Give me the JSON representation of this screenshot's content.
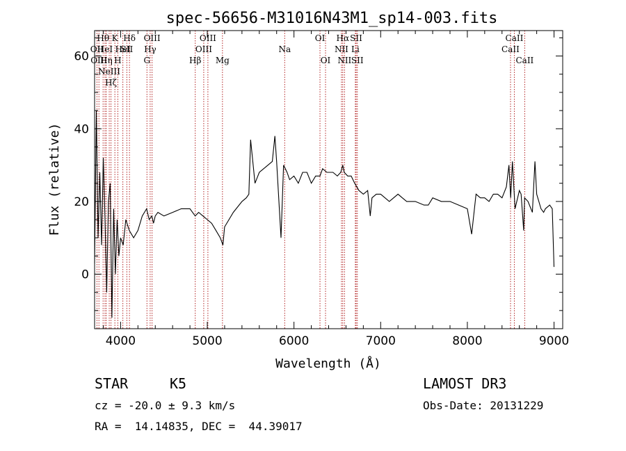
{
  "chart_data": {
    "type": "line",
    "title": "spec-56656-M31016N43M1_sp14-003.fits",
    "xlabel": "Wavelength (Å)",
    "ylabel": "Flux (relative)",
    "xlim": [
      3700,
      9100
    ],
    "ylim": [
      -15,
      67
    ],
    "xticks": [
      4000,
      5000,
      6000,
      7000,
      8000,
      9000
    ],
    "yticks": [
      0,
      20,
      40,
      60
    ],
    "series": [
      {
        "name": "flux",
        "x": [
          3700,
          3720,
          3740,
          3760,
          3780,
          3800,
          3820,
          3840,
          3860,
          3880,
          3900,
          3920,
          3940,
          3960,
          3980,
          4000,
          4030,
          4060,
          4100,
          4150,
          4200,
          4250,
          4300,
          4330,
          4360,
          4380,
          4400,
          4430,
          4500,
          4600,
          4700,
          4800,
          4860,
          4900,
          4950,
          5000,
          5050,
          5100,
          5150,
          5180,
          5200,
          5250,
          5300,
          5400,
          5450,
          5480,
          5500,
          5550,
          5600,
          5650,
          5700,
          5750,
          5780,
          5800,
          5850,
          5880,
          5900,
          5920,
          5950,
          6000,
          6050,
          6100,
          6150,
          6200,
          6250,
          6300,
          6330,
          6380,
          6450,
          6500,
          6540,
          6563,
          6580,
          6620,
          6660,
          6700,
          6750,
          6800,
          6850,
          6880,
          6900,
          6950,
          7000,
          7100,
          7200,
          7250,
          7300,
          7400,
          7500,
          7550,
          7600,
          7700,
          7800,
          7900,
          8000,
          8050,
          8100,
          8150,
          8200,
          8250,
          8300,
          8350,
          8400,
          8450,
          8480,
          8500,
          8520,
          8550,
          8600,
          8620,
          8650,
          8660,
          8700,
          8750,
          8780,
          8800,
          8850,
          8880,
          8900,
          8950,
          8980,
          9000
        ],
        "y": [
          3,
          45,
          10,
          28,
          8,
          32,
          15,
          -5,
          20,
          25,
          -12,
          18,
          0,
          15,
          5,
          10,
          8,
          15,
          12,
          10,
          12,
          16,
          18,
          15,
          16,
          14,
          16,
          17,
          16,
          17,
          18,
          18,
          16,
          17,
          16,
          15,
          14,
          12,
          10,
          8,
          13,
          15,
          17,
          20,
          21,
          22,
          37,
          25,
          28,
          29,
          30,
          31,
          38,
          31,
          10,
          30,
          29,
          28,
          26,
          27,
          25,
          28,
          28,
          25,
          27,
          27,
          29,
          28,
          28,
          27,
          28,
          30,
          28,
          27,
          27,
          25,
          23,
          22,
          23,
          16,
          21,
          22,
          22,
          20,
          22,
          21,
          20,
          20,
          19,
          19,
          21,
          20,
          20,
          19,
          18,
          11,
          22,
          21,
          21,
          20,
          22,
          22,
          21,
          24,
          30,
          21,
          31,
          18,
          23,
          22,
          12,
          21,
          20,
          17,
          31,
          22,
          18,
          17,
          18,
          19,
          18,
          2
        ]
      }
    ],
    "lines": [
      {
        "wl": 3727,
        "label": "OII",
        "row": 1
      },
      {
        "wl": 3750,
        "label": "OIII",
        "row": 2
      },
      {
        "wl": 3798,
        "label": "Hθ",
        "row": 0
      },
      {
        "wl": 3820,
        "label": "HeI",
        "row": 1
      },
      {
        "wl": 3835,
        "label": "Hη",
        "row": 2
      },
      {
        "wl": 3869,
        "label": "NeIII",
        "row": 3
      },
      {
        "wl": 3889,
        "label": "Hζ",
        "row": 4
      },
      {
        "wl": 3934,
        "label": "K",
        "row": 0
      },
      {
        "wl": 3968,
        "label": "H",
        "row": 2
      },
      {
        "wl": 4026,
        "label": "HeI",
        "row": 1
      },
      {
        "wl": 4072,
        "label": "SII",
        "row": 1
      },
      {
        "wl": 4102,
        "label": "Hδ",
        "row": 0
      },
      {
        "wl": 4304,
        "label": "G",
        "row": 2
      },
      {
        "wl": 4341,
        "label": "Hγ",
        "row": 1
      },
      {
        "wl": 4363,
        "label": "OIII",
        "row": 0
      },
      {
        "wl": 4861,
        "label": "Hβ",
        "row": 2
      },
      {
        "wl": 4959,
        "label": "OIII",
        "row": 1
      },
      {
        "wl": 5007,
        "label": "OIII",
        "row": 0
      },
      {
        "wl": 5175,
        "label": "Mg",
        "row": 2
      },
      {
        "wl": 5893,
        "label": "Na",
        "row": 1
      },
      {
        "wl": 6300,
        "label": "OI",
        "row": 0
      },
      {
        "wl": 6364,
        "label": "OI",
        "row": 2
      },
      {
        "wl": 6548,
        "label": "NII",
        "row": 1
      },
      {
        "wl": 6563,
        "label": "Hα",
        "row": 0
      },
      {
        "wl": 6583,
        "label": "NII",
        "row": 2
      },
      {
        "wl": 6708,
        "label": "Li",
        "row": 1
      },
      {
        "wl": 6717,
        "label": "SII",
        "row": 0
      },
      {
        "wl": 6731,
        "label": "SII",
        "row": 2
      },
      {
        "wl": 8498,
        "label": "CaII",
        "row": 1
      },
      {
        "wl": 8542,
        "label": "CaII",
        "row": 0
      },
      {
        "wl": 8662,
        "label": "CaII",
        "row": 2
      }
    ],
    "line_color": "#b22222"
  },
  "info": {
    "class": "STAR",
    "subclass": "K5",
    "survey": "LAMOST DR3",
    "cz": "cz = -20.0 ± 9.3 km/s",
    "obs_date": "Obs-Date: 20131229",
    "coords": "RA =  14.14835, DEC =  44.39017"
  }
}
